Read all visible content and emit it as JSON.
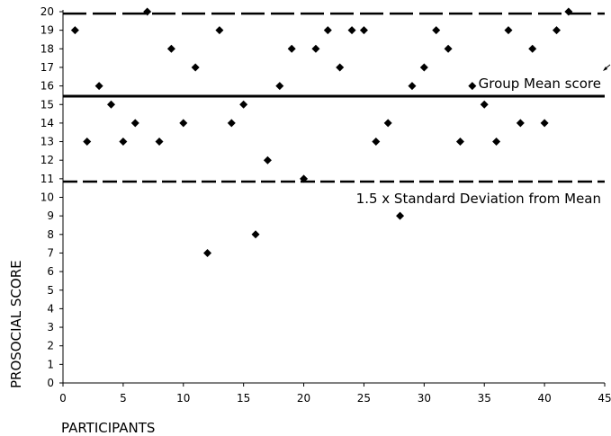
{
  "chart_data": {
    "type": "scatter",
    "xlabel": "PARTICIPANTS",
    "ylabel": "PROSOCIAL SCORE",
    "xlim": [
      0,
      45
    ],
    "ylim": [
      0,
      20
    ],
    "x_ticks": [
      0,
      5,
      10,
      15,
      20,
      25,
      30,
      35,
      40,
      45
    ],
    "y_ticks": [
      0,
      1,
      2,
      3,
      4,
      5,
      6,
      7,
      8,
      9,
      10,
      11,
      12,
      13,
      14,
      15,
      16,
      17,
      18,
      19,
      20
    ],
    "grid": false,
    "marker": "diamond",
    "marker_color": "#000000",
    "series": [
      {
        "points": [
          [
            1,
            19
          ],
          [
            2,
            13
          ],
          [
            3,
            16
          ],
          [
            4,
            15
          ],
          [
            5,
            13
          ],
          [
            6,
            14
          ],
          [
            7,
            20
          ],
          [
            8,
            13
          ],
          [
            9,
            18
          ],
          [
            10,
            14
          ],
          [
            11,
            17
          ],
          [
            12,
            7
          ],
          [
            13,
            19
          ],
          [
            14,
            14
          ],
          [
            15,
            15
          ],
          [
            16,
            8
          ],
          [
            17,
            12
          ],
          [
            18,
            16
          ],
          [
            19,
            18
          ],
          [
            20,
            11
          ],
          [
            21,
            18
          ],
          [
            22,
            19
          ],
          [
            23,
            17
          ],
          [
            24,
            19
          ],
          [
            25,
            19
          ],
          [
            26,
            13
          ],
          [
            27,
            14
          ],
          [
            28,
            9
          ],
          [
            29,
            16
          ],
          [
            30,
            17
          ],
          [
            31,
            19
          ],
          [
            32,
            18
          ],
          [
            33,
            13
          ],
          [
            34,
            16
          ],
          [
            35,
            15
          ],
          [
            36,
            13
          ],
          [
            37,
            19
          ],
          [
            38,
            14
          ],
          [
            39,
            18
          ],
          [
            40,
            14
          ],
          [
            41,
            19
          ],
          [
            42,
            20
          ]
        ]
      }
    ],
    "reference_lines": [
      {
        "y": 15.45,
        "style": "solid",
        "label": "Group Mean score"
      },
      {
        "y": 19.9,
        "style": "dashed",
        "label": ""
      },
      {
        "y": 10.85,
        "style": "dashed",
        "label": "1.5 x Standard Deviation from Mean"
      }
    ]
  }
}
